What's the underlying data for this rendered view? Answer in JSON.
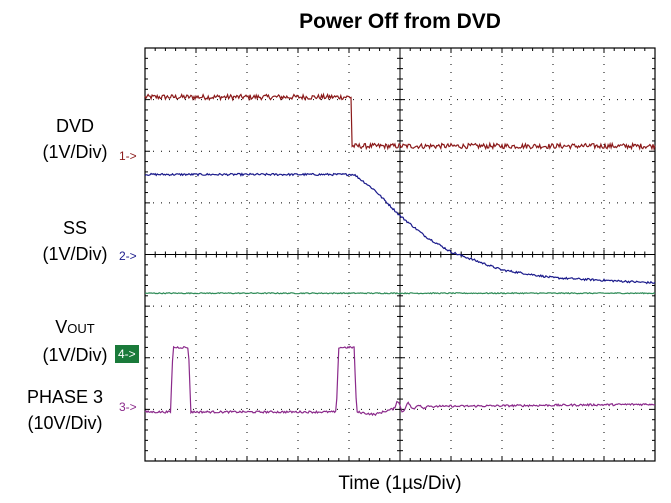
{
  "chart_data": {
    "type": "line",
    "title": "Power Off from DVD",
    "xlabel": "Time (1µs/Div)",
    "grid": true,
    "x_divisions": 10,
    "y_divisions": 8,
    "channels": [
      {
        "name": "DVD",
        "label_line1": "DVD",
        "label_line2": "(1V/Div)",
        "marker": "1->",
        "color": "#8b1a1a",
        "ref_level_div": 6,
        "x_div": [
          0,
          4.05,
          4.06,
          4.15,
          10
        ],
        "y_div": [
          1.05,
          1.05,
          0.1,
          0.1,
          0.1
        ],
        "noise_div": 0.05
      },
      {
        "name": "SS",
        "label_line1": "SS",
        "label_line2": "(1V/Div)",
        "marker": "2->",
        "color": "#1a1a8b",
        "ref_level_div": 4,
        "x_div": [
          0,
          4.1,
          4.5,
          5,
          5.5,
          6,
          7,
          8,
          9,
          10
        ],
        "y_div": [
          1.55,
          1.55,
          1.25,
          0.75,
          0.35,
          0.05,
          -0.3,
          -0.45,
          -0.5,
          -0.55
        ],
        "noise_div": 0.02
      },
      {
        "name": "VOUT",
        "label_line1": "V",
        "label_sub": "OUT",
        "label_line2": "(1V/Div)",
        "marker": "4->",
        "color": "#2e8b57",
        "ref_level_div": 2,
        "x_div": [
          0,
          10
        ],
        "y_div": [
          1.25,
          1.25
        ],
        "noise_div": 0.01
      },
      {
        "name": "PHASE 3",
        "label_line1": "PHASE 3",
        "label_line2": "(10V/Div)",
        "marker": "3->",
        "color": "#8b2a8b",
        "ref_level_div": 1,
        "x_div": [
          0,
          0.5,
          0.55,
          0.85,
          0.9,
          3.75,
          3.8,
          4.1,
          4.15,
          4.5,
          5,
          10
        ],
        "y_div": [
          -0.05,
          -0.05,
          1.2,
          1.2,
          -0.05,
          -0.05,
          1.2,
          1.2,
          -0.05,
          -0.1,
          0.05,
          0.1
        ],
        "noise_div": 0.02
      }
    ]
  }
}
